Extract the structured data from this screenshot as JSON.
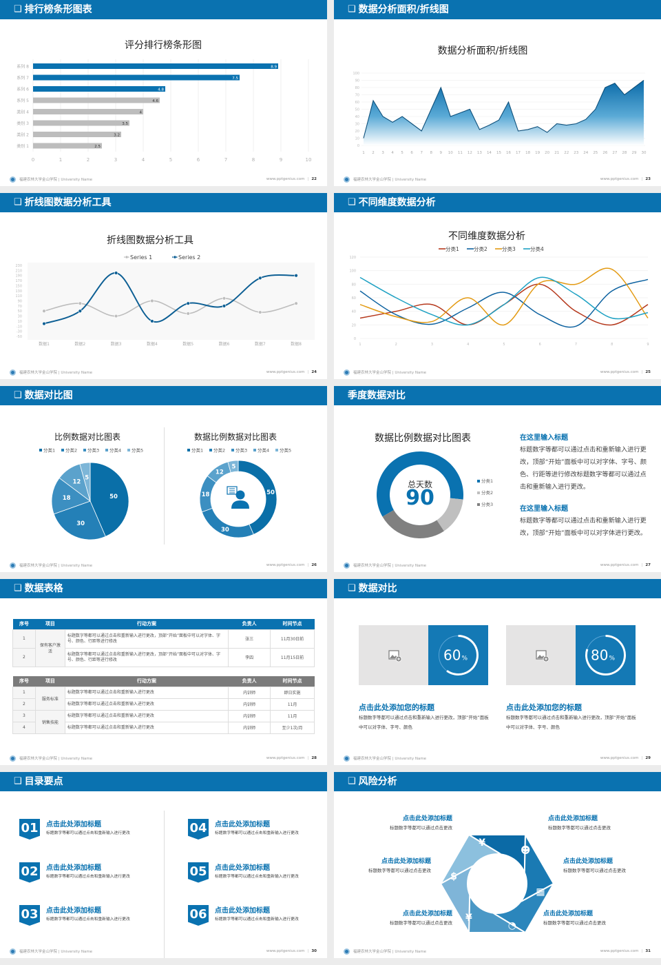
{
  "footer": {
    "school": "福建农林大学金山学院 | University Name",
    "site": "www.pptgenius.com"
  },
  "colors": {
    "primary": "#0a72b0",
    "header_text": "#ffffff",
    "gray_bar": "#bdbdbd"
  },
  "slides": [
    {
      "header": "排行榜条形图表",
      "page": "22",
      "title": "评分排行榜条形图"
    },
    {
      "header": "数据分析面积/折线图",
      "page": "23",
      "title": "数据分析面积/折线图"
    },
    {
      "header": "折线图数据分析工具",
      "page": "24",
      "title": "折线图数据分析工具"
    },
    {
      "header": "不同维度数据分析",
      "page": "25",
      "title": "不同维度数据分析"
    },
    {
      "header": "数据对比图",
      "page": "26",
      "title_left": "比例数据对比图表",
      "title_right": "数据比例数据对比图表"
    },
    {
      "header": "季度数据对比",
      "page": "27",
      "title": "数据比例数据对比图表",
      "center_label": "总天数",
      "center_value": "90",
      "blocks": [
        {
          "heading": "在这里输入标题",
          "text": "标题数字等都可以通过点击和重新输入进行更改，顶部“开始”面板中可以对字体、字号、颜色、行距等进行修改标题数字等都可以通过点击和重新输入进行更改。"
        },
        {
          "heading": "在这里输入标题",
          "text": "标题数字等都可以通过点击和重新输入进行更改，顶部“开始”面板中可以对字体进行更改。"
        }
      ]
    },
    {
      "header": "数据表格",
      "page": "28",
      "columns": [
        "序号",
        "项目",
        "行动方案",
        "负责人",
        "时间节点"
      ],
      "table1": {
        "group": "保有客户激活",
        "rows": [
          {
            "no": "1",
            "plan": "标题数字等都可以通过点击和重新输入进行更改，顶部“开始”面板中可以对字体、字号、颜色、行距等进行修改",
            "owner": "张三",
            "time": "11月30日前"
          },
          {
            "no": "2",
            "plan": "标题数字等都可以通过点击和重新输入进行更改，顶部“开始”面板中可以对字体、字号、颜色、行距等进行修改",
            "owner": "李四",
            "time": "11月15日前"
          }
        ]
      },
      "table2": {
        "groups": [
          "服务标准",
          "销售技能"
        ],
        "rows": [
          {
            "no": "1",
            "plan": "标题数字等都可以通过点击和重新输入进行更改",
            "owner": "内训师",
            "time": "即日实施"
          },
          {
            "no": "2",
            "plan": "标题数字等都可以通过点击和重新输入进行更改",
            "owner": "内训师",
            "time": "11月"
          },
          {
            "no": "3",
            "plan": "标题数字等都可以通过点击和重新输入进行更改",
            "owner": "内训师",
            "time": "11月"
          },
          {
            "no": "4",
            "plan": "标题数字等都可以通过点击和重新输入进行更改",
            "owner": "内训师",
            "time": "至少1次/月"
          }
        ]
      }
    },
    {
      "header": "数据对比",
      "page": "29",
      "cards": [
        {
          "percent": 60,
          "percent_label": "60",
          "unit": "%",
          "icon": "image-add-icon",
          "title": "点击此处添加您的标题",
          "text": "标题数字等都可以通过点击和重新输入进行更改，顶部“开始”面板中可以对字体、字号、颜色"
        },
        {
          "percent": 80,
          "percent_label": "80",
          "unit": "%",
          "icon": "image-add-icon",
          "title": "点击此处添加您的标题",
          "text": "标题数字等都可以通过点击和重新输入进行更改，顶部“开始”面板中可以对字体、字号、颜色"
        }
      ]
    },
    {
      "header": "目录要点",
      "page": "30",
      "items": [
        {
          "num": "01",
          "title": "点击此处添加标题",
          "text": "标题数字等都可以通过点击和重新输入进行更改"
        },
        {
          "num": "02",
          "title": "点击此处添加标题",
          "text": "标题数字等都可以通过点击和重新输入进行更改"
        },
        {
          "num": "03",
          "title": "点击此处添加标题",
          "text": "标题数字等都可以通过点击和重新输入进行更改"
        },
        {
          "num": "04",
          "title": "点击此处添加标题",
          "text": "标题数字等都可以通过点击和重新输入进行更改"
        },
        {
          "num": "05",
          "title": "点击此处添加标题",
          "text": "标题数字等都可以通过点击和重新输入进行更改"
        },
        {
          "num": "06",
          "title": "点击此处添加标题",
          "text": "标题数字等都可以通过点击和重新输入进行更改"
        }
      ]
    },
    {
      "header": "风险分析",
      "page": "31",
      "items": [
        {
          "title": "点击此处添加标题",
          "text": "标题数字等都可以通过点击更改",
          "icon": "money-bag-icon",
          "glyph": "¥"
        },
        {
          "title": "点击此处添加标题",
          "text": "标题数字等都可以通过点击更改",
          "icon": "coins-icon",
          "glyph": "$"
        },
        {
          "title": "点击此处添加标题",
          "text": "标题数字等都可以通过点击更改",
          "icon": "hand-money-icon",
          "glyph": "¥"
        },
        {
          "title": "点击此处添加标题",
          "text": "标题数字等都可以通过点击更改",
          "icon": "users-icon",
          "glyph": "☻"
        },
        {
          "title": "点击此处添加标题",
          "text": "标题数字等都可以通过点击更改",
          "icon": "building-icon",
          "glyph": "▦"
        },
        {
          "title": "点击此处添加标题",
          "text": "标题数字等都可以通过点击更改",
          "icon": "pie-chart-icon",
          "glyph": "◔"
        }
      ]
    }
  ],
  "chart_data": [
    {
      "type": "bar",
      "orientation": "horizontal",
      "title": "评分排行榜条形图",
      "categories": [
        "系列 8",
        "系列 7",
        "系列 6",
        "系列 5",
        "类别 4",
        "类别 3",
        "类别 2",
        "类别 1"
      ],
      "values": [
        8.9,
        7.5,
        4.8,
        4.6,
        4,
        3.5,
        3.2,
        2.5
      ],
      "bar_colors": [
        "#0a72b0",
        "#0a72b0",
        "#0a72b0",
        "#bdbdbd",
        "#bdbdbd",
        "#bdbdbd",
        "#bdbdbd",
        "#bdbdbd"
      ],
      "xlim": [
        0,
        10
      ],
      "xticks": [
        0,
        1,
        2,
        3,
        4,
        5,
        6,
        7,
        8,
        9,
        10
      ],
      "grid": true
    },
    {
      "type": "area",
      "title": "数据分析面积/折线图",
      "x": [
        1,
        2,
        3,
        4,
        5,
        6,
        7,
        8,
        9,
        10,
        11,
        12,
        13,
        14,
        15,
        16,
        17,
        18,
        19,
        20,
        21,
        22,
        23,
        24,
        25,
        26,
        27,
        28,
        29,
        30
      ],
      "values": [
        10,
        62,
        40,
        32,
        40,
        30,
        20,
        50,
        80,
        40,
        45,
        50,
        22,
        28,
        35,
        60,
        20,
        22,
        26,
        18,
        30,
        28,
        30,
        36,
        50,
        80,
        86,
        70,
        80,
        90
      ],
      "ylim": [
        0,
        100
      ],
      "yticks": [
        0,
        10,
        20,
        30,
        40,
        50,
        60,
        70,
        80,
        90,
        100
      ],
      "color": "#0a6aa8"
    },
    {
      "type": "line",
      "title": "折线图数据分析工具",
      "smooth": true,
      "categories": [
        "数据1",
        "数据2",
        "数据3",
        "数据4",
        "数据5",
        "数据6",
        "数据7",
        "数据8"
      ],
      "series": [
        {
          "name": "Series 1",
          "values": [
            50,
            80,
            30,
            90,
            40,
            100,
            45,
            80
          ],
          "color": "#bdbdbd"
        },
        {
          "name": "Series 2",
          "values": [
            0,
            50,
            200,
            10,
            80,
            70,
            180,
            190
          ],
          "color": "#0d5f94"
        }
      ],
      "ylim": [
        -50,
        230
      ],
      "yticks": [
        230,
        210,
        190,
        170,
        150,
        130,
        110,
        90,
        70,
        50,
        30,
        10,
        -10,
        -30,
        -50
      ],
      "legend": "top"
    },
    {
      "type": "line",
      "title": "不同维度数据分析",
      "smooth": true,
      "x": [
        1,
        2,
        3,
        4,
        5,
        6,
        7,
        8,
        9
      ],
      "series": [
        {
          "name": "分类1",
          "values": [
            30,
            40,
            50,
            20,
            50,
            80,
            40,
            20,
            50
          ],
          "color": "#b5381c"
        },
        {
          "name": "分类2",
          "values": [
            70,
            35,
            21,
            45,
            68,
            35,
            18,
            70,
            87
          ],
          "color": "#0d62a0"
        },
        {
          "name": "分类3",
          "values": [
            50,
            32,
            25,
            60,
            20,
            82,
            80,
            102,
            30
          ],
          "color": "#e39a12"
        },
        {
          "name": "分类4",
          "values": [
            90,
            60,
            35,
            20,
            50,
            90,
            65,
            30,
            38
          ],
          "color": "#1ea1c3"
        }
      ],
      "ylim": [
        0,
        120
      ],
      "yticks": [
        0,
        20,
        40,
        60,
        80,
        100,
        120
      ],
      "legend": "top"
    },
    {
      "type": "pie",
      "title": "比例数据对比图表",
      "categories": [
        "分类1",
        "分类2",
        "分类3",
        "分类4",
        "分类5"
      ],
      "values": [
        50,
        30,
        18,
        12,
        5
      ],
      "colors": [
        "#0a6fa8",
        "#2480b7",
        "#3c8fc1",
        "#5ba2cc",
        "#7db6d8"
      ],
      "legend": "top"
    },
    {
      "type": "pie",
      "donut": true,
      "title": "数据比例数据对比图表",
      "categories": [
        "分类1",
        "分类2",
        "分类3",
        "分类4",
        "分类5"
      ],
      "values": [
        50,
        30,
        18,
        12,
        5
      ],
      "colors": [
        "#0a6fa8",
        "#2480b7",
        "#3c8fc1",
        "#5ba2cc",
        "#7db6d8"
      ],
      "legend": "top"
    },
    {
      "type": "pie",
      "donut": true,
      "title": "数据比例数据对比图表",
      "categories": [
        "分类1",
        "分类2",
        "分类3"
      ],
      "values": [
        60,
        14,
        26
      ],
      "colors": [
        "#0a72b0",
        "#bfbfbf",
        "#808080"
      ],
      "legend": "right"
    }
  ]
}
